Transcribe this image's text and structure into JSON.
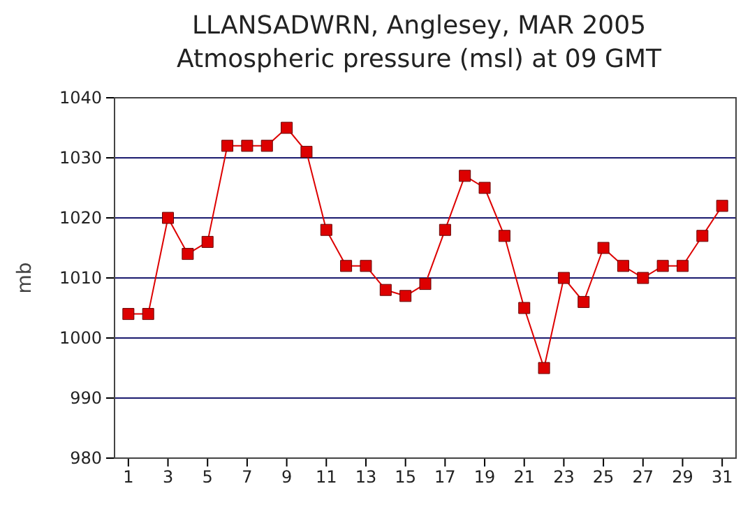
{
  "chart_data": {
    "type": "line",
    "title": "LLANSADWRN, Anglesey,  MAR 2005",
    "subtitle": "Atmospheric pressure  (msl) at 09 GMT",
    "ylabel": "mb",
    "x": [
      1,
      2,
      3,
      4,
      5,
      6,
      7,
      8,
      9,
      10,
      11,
      12,
      13,
      14,
      15,
      16,
      17,
      18,
      19,
      20,
      21,
      22,
      23,
      24,
      25,
      26,
      27,
      28,
      29,
      30,
      31
    ],
    "series": [
      {
        "color": "#dd0000",
        "values": [
          1004,
          1004,
          1020,
          1014,
          1016,
          1032,
          1032,
          1032,
          1035,
          1031,
          1018,
          1012,
          1012,
          1008,
          1007,
          1009,
          1018,
          1027,
          1025,
          1017,
          1005,
          995,
          1010,
          1006,
          1015,
          1012,
          1010,
          1012,
          1012,
          1017,
          1022
        ]
      }
    ],
    "xlim": [
      0.3,
      31.7
    ],
    "xticks": [
      1,
      3,
      5,
      7,
      9,
      11,
      13,
      15,
      17,
      19,
      21,
      23,
      25,
      27,
      29,
      31
    ],
    "ylim": [
      980,
      1040
    ],
    "yticks": [
      980,
      990,
      1000,
      1010,
      1020,
      1030,
      1040
    ],
    "grid": "y",
    "marker": "square",
    "line_style": "solid"
  }
}
